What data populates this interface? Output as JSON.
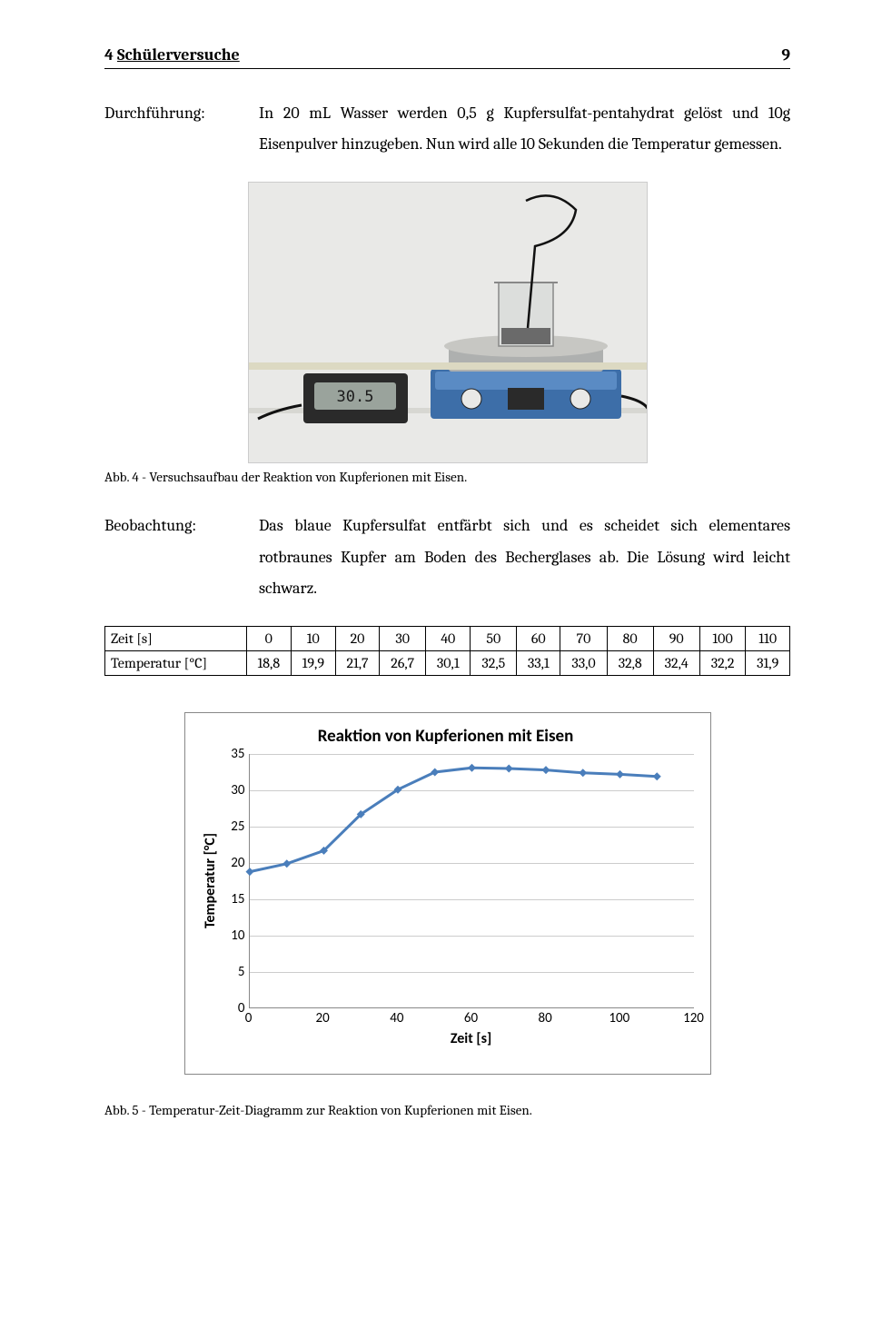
{
  "header": {
    "section_number": "4",
    "section_title": "Schülerversuche",
    "page_number": "9"
  },
  "procedure": {
    "label": "Durchführung:",
    "text": "In 20 mL Wasser werden 0,5 g Kupfersulfat-pentahydrat gelöst und 10g Eisenpulver hinzugeben. Nun wird alle 10 Sekunden die Temperatur gemessen."
  },
  "photo": {
    "background": "#e8e8e6",
    "caption": "Abb. 4 -  Versuchsaufbau der Reaktion von Kupferionen mit Eisen."
  },
  "observation": {
    "label": "Beobachtung:",
    "text": "Das blaue Kupfersulfat entfärbt sich und es scheidet sich elementares rotbraunes Kupfer am Boden des Becherglases ab. Die Lösung wird leicht schwarz."
  },
  "table": {
    "row_labels": [
      "Zeit [s]",
      "Temperatur [°C]"
    ],
    "time": [
      "0",
      "10",
      "20",
      "30",
      "40",
      "50",
      "60",
      "70",
      "80",
      "90",
      "100",
      "110"
    ],
    "temp": [
      "18,8",
      "19,9",
      "21,7",
      "26,7",
      "30,1",
      "32,5",
      "33,1",
      "33,0",
      "32,8",
      "32,4",
      "32,2",
      "31,9"
    ]
  },
  "chart": {
    "title": "Reaktion von Kupferionen mit Eisen",
    "xlabel": "Zeit [s]",
    "ylabel": "Temperatur [°C]",
    "x": [
      0,
      10,
      20,
      30,
      40,
      50,
      60,
      70,
      80,
      90,
      100,
      110
    ],
    "y": [
      18.8,
      19.9,
      21.7,
      26.7,
      30.1,
      32.5,
      33.1,
      33.0,
      32.8,
      32.4,
      32.2,
      31.9
    ],
    "xlim": [
      0,
      120
    ],
    "ylim": [
      0,
      35
    ],
    "xticks": [
      0,
      20,
      40,
      60,
      80,
      100,
      120
    ],
    "yticks": [
      0,
      5,
      10,
      15,
      20,
      25,
      30,
      35
    ],
    "line_color": "#4a7ebb",
    "marker_color": "#4a7ebb",
    "marker_size": 9,
    "line_width": 3,
    "grid_color": "#cccccc",
    "axis_color": "#888888",
    "title_fontsize": 19,
    "label_fontsize": 16,
    "tick_fontsize": 15,
    "background_color": "#ffffff"
  },
  "caption2": "Abb. 5 -  Temperatur-Zeit-Diagramm zur Reaktion von Kupferionen mit Eisen."
}
